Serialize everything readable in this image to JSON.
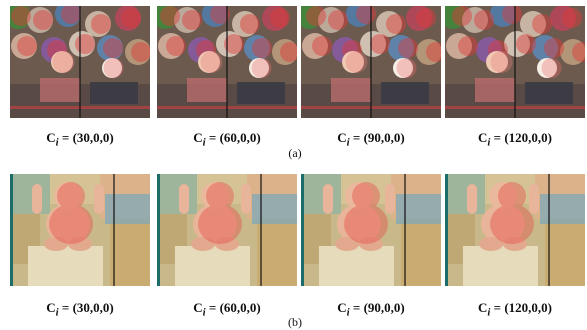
{
  "figure": {
    "row_a": {
      "label": "(a)",
      "panels": [
        {
          "symbol": "C",
          "subscript": "i",
          "value": " = (30,0,0)"
        },
        {
          "symbol": "C",
          "subscript": "i",
          "value": " = (60,0,0)"
        },
        {
          "symbol": "C",
          "subscript": "i",
          "value": " = (90,0,0)"
        },
        {
          "symbol": "C",
          "subscript": "i",
          "value": " = (120,0,0)"
        }
      ]
    },
    "row_b": {
      "label": "(b)",
      "panels": [
        {
          "symbol": "C",
          "subscript": "i",
          "value": " = (30,0,0)"
        },
        {
          "symbol": "C",
          "subscript": "i",
          "value": " = (60,0,0)"
        },
        {
          "symbol": "C",
          "subscript": "i",
          "value": " = (90,0,0)"
        },
        {
          "symbol": "C",
          "subscript": "i",
          "value": " = (120,0,0)"
        }
      ]
    }
  }
}
